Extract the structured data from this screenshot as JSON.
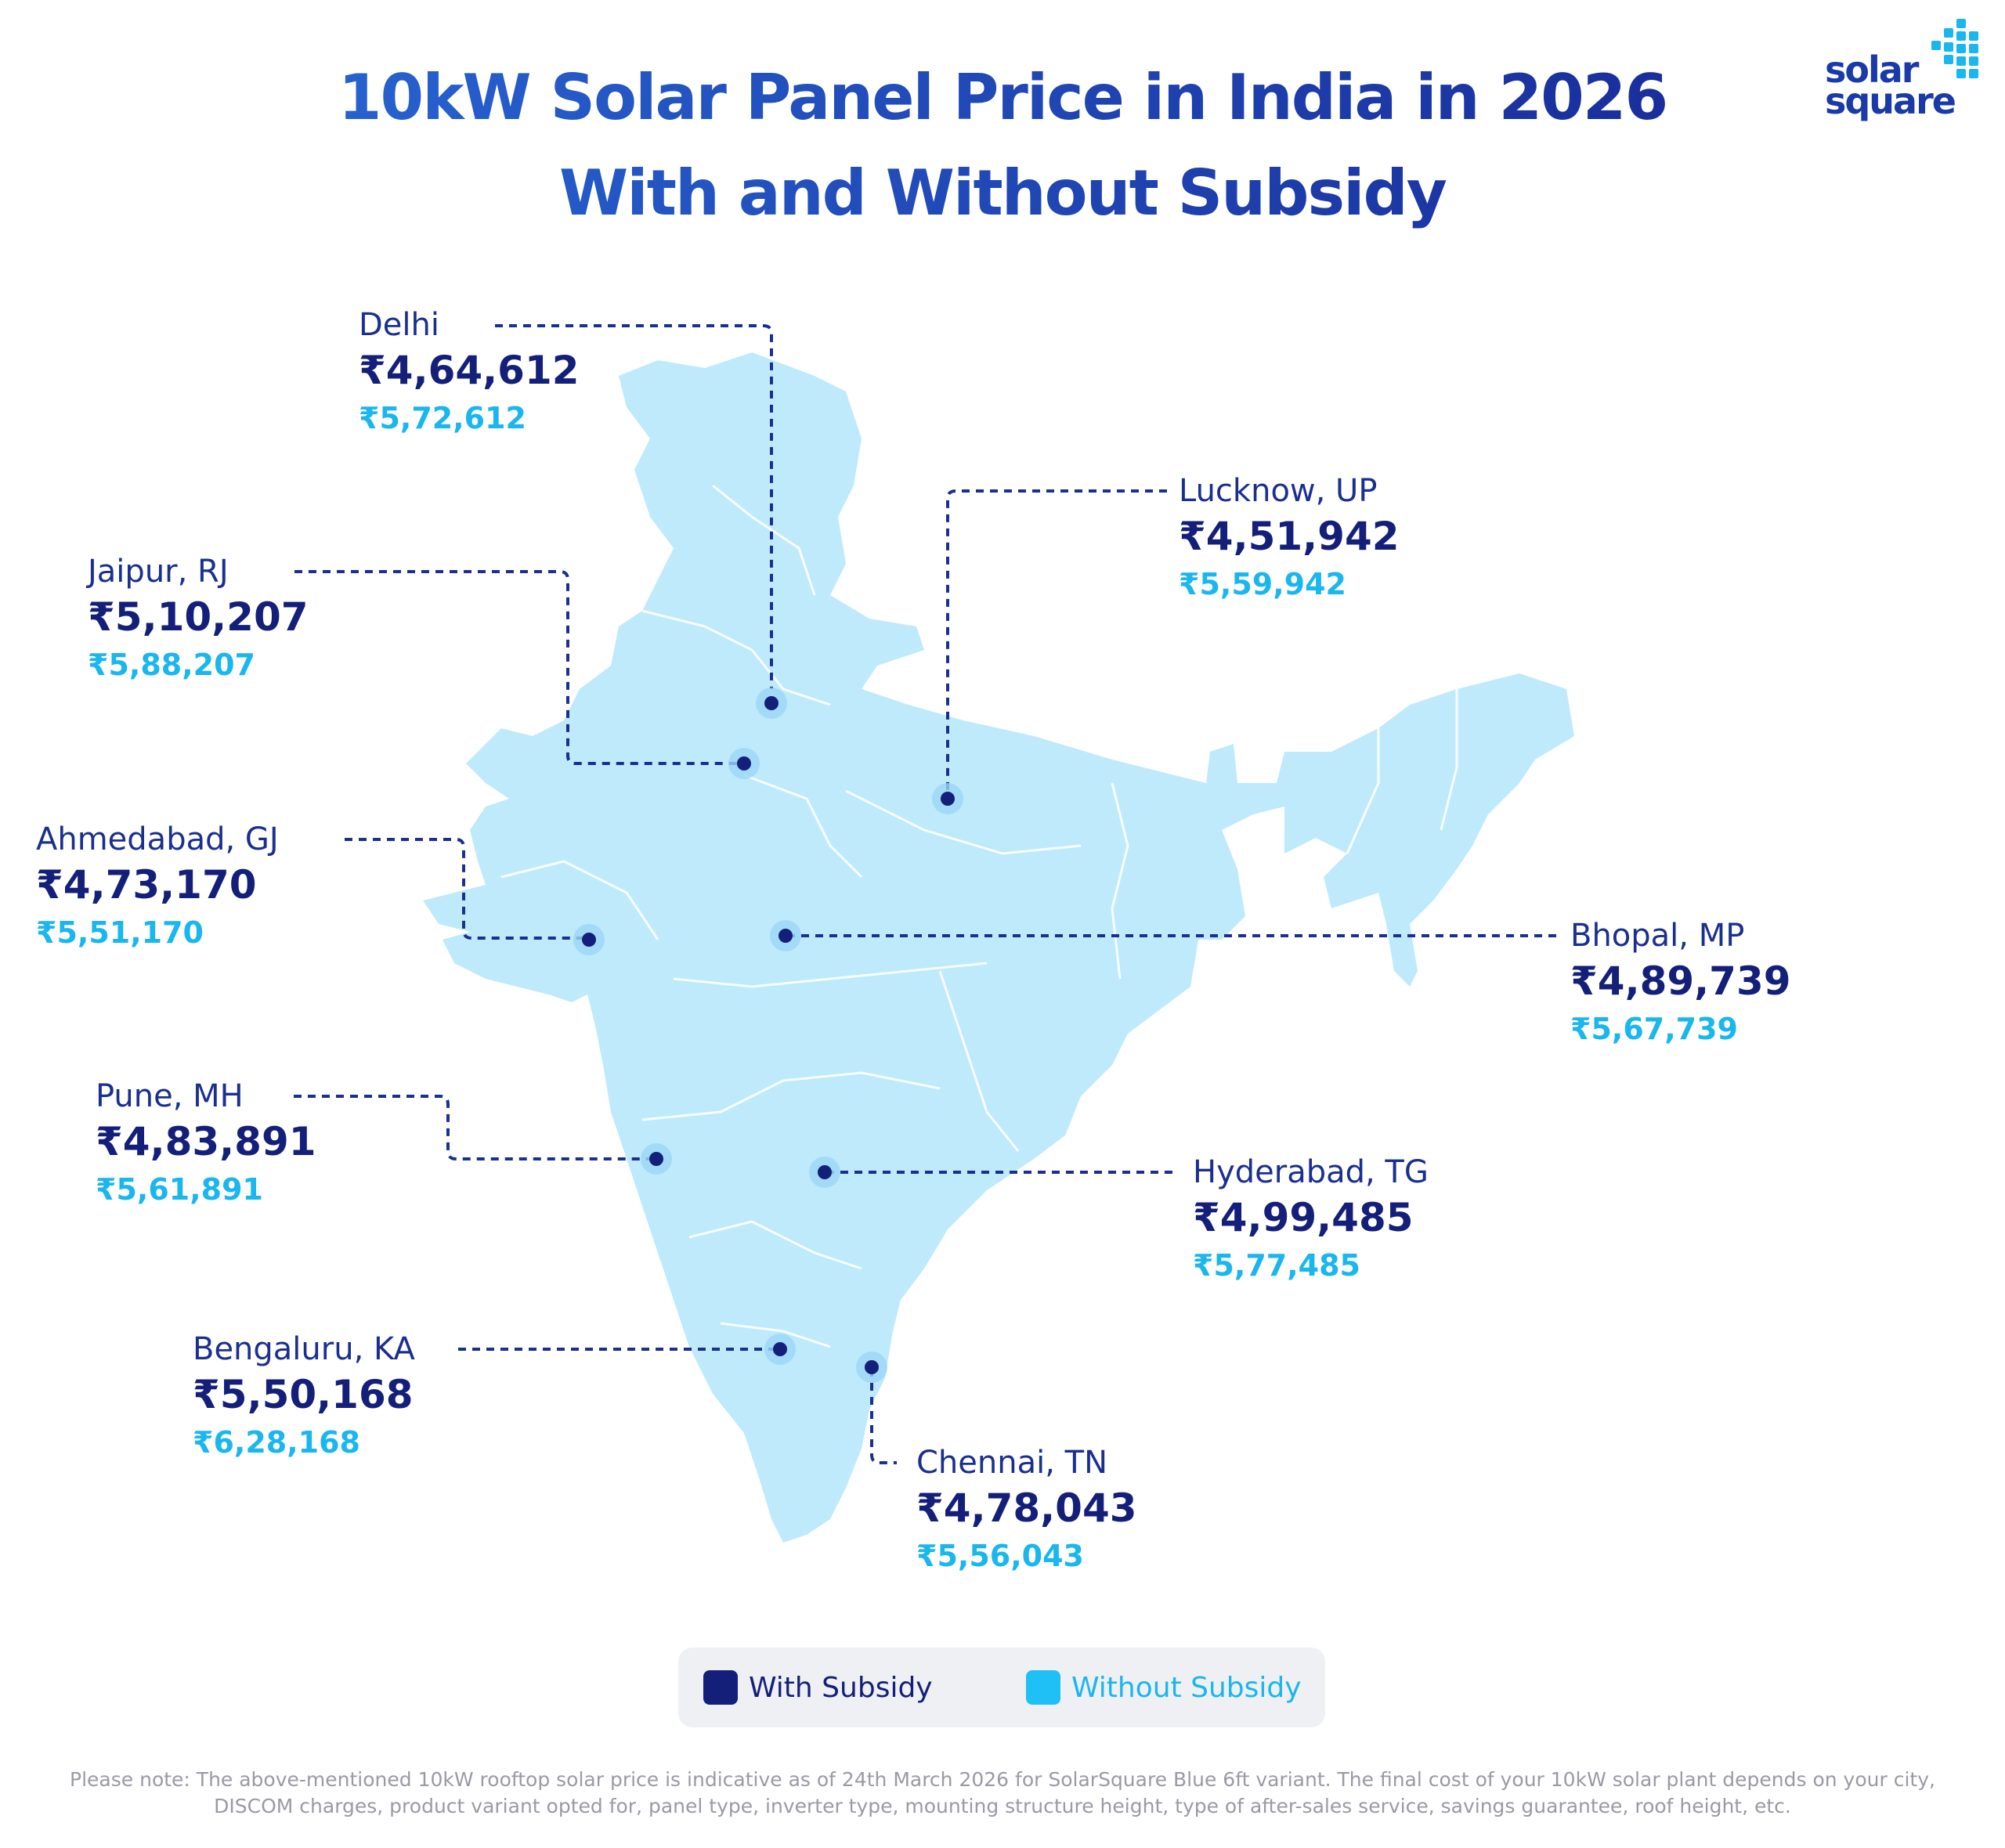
{
  "title": {
    "line1": "10kW Solar Panel Price in India in 2026",
    "line2": "With and Without Subsidy"
  },
  "logo": {
    "line1": "solar",
    "line2": "square"
  },
  "colors": {
    "title_gradient_start": "#2a6fdc",
    "title_gradient_end": "#16218f",
    "with_subsidy": "#141f7a",
    "without_subsidy": "#1ab6ee",
    "map_fill": "#bfeafc",
    "leader_line": "#1a2f8e"
  },
  "cities": [
    {
      "id": "delhi",
      "name": "Delhi",
      "with_subsidy": "₹4,64,612",
      "without_subsidy": "₹5,72,612"
    },
    {
      "id": "lucknow",
      "name": "Lucknow, UP",
      "with_subsidy": "₹4,51,942",
      "without_subsidy": "₹5,59,942"
    },
    {
      "id": "jaipur",
      "name": "Jaipur, RJ",
      "with_subsidy": "₹5,10,207",
      "without_subsidy": "₹5,88,207"
    },
    {
      "id": "ahmedabad",
      "name": "Ahmedabad, GJ",
      "with_subsidy": "₹4,73,170",
      "without_subsidy": "₹5,51,170"
    },
    {
      "id": "bhopal",
      "name": "Bhopal, MP",
      "with_subsidy": "₹4,89,739",
      "without_subsidy": "₹5,67,739"
    },
    {
      "id": "pune",
      "name": "Pune, MH",
      "with_subsidy": "₹4,83,891",
      "without_subsidy": "₹5,61,891"
    },
    {
      "id": "hyderabad",
      "name": "Hyderabad, TG",
      "with_subsidy": "₹4,99,485",
      "without_subsidy": "₹5,77,485"
    },
    {
      "id": "bengaluru",
      "name": "Bengaluru, KA",
      "with_subsidy": "₹5,50,168",
      "without_subsidy": "₹6,28,168"
    },
    {
      "id": "chennai",
      "name": "Chennai, TN",
      "with_subsidy": "₹4,78,043",
      "without_subsidy": "₹5,56,043"
    }
  ],
  "legend": {
    "with_label": "With Subsidy",
    "without_label": "Without Subsidy"
  },
  "footnote": "Please note: The above-mentioned 10kW rooftop solar price is indicative as of 24th March 2026 for SolarSquare Blue 6ft variant. The final cost of your 10kW solar plant depends on your city, DISCOM charges, product variant opted for, panel type, inverter type, mounting structure height, type of after-sales service, savings guarantee, roof height, etc."
}
